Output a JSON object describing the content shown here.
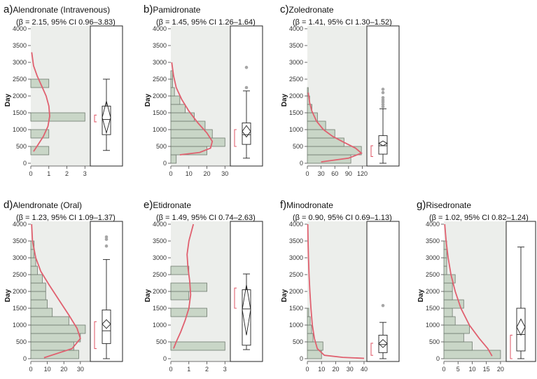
{
  "chart_data": [
    {
      "type": "bar",
      "letter": "a)",
      "drug": "Alendronate (Intravenous)",
      "stat": "(β = 2.15, 95% CI 0.96–3.83)",
      "ylabel": "Day",
      "ylim": [
        0,
        4000
      ],
      "yticks": [
        0,
        500,
        1000,
        1500,
        2000,
        2500,
        3000,
        3500,
        4000
      ],
      "xlim": [
        0,
        3.3
      ],
      "xticks": [
        0,
        1,
        2,
        3
      ],
      "bin_width": 250,
      "bars": [
        {
          "start": 250,
          "count": 1
        },
        {
          "start": 750,
          "count": 1
        },
        {
          "start": 1250,
          "count": 3
        },
        {
          "start": 2250,
          "count": 1
        }
      ],
      "curve": [
        [
          0.05,
          3300
        ],
        [
          0.15,
          2900
        ],
        [
          0.35,
          2600
        ],
        [
          0.6,
          2300
        ],
        [
          0.85,
          2000
        ],
        [
          1.0,
          1700
        ],
        [
          1.05,
          1400
        ],
        [
          0.95,
          1100
        ],
        [
          0.7,
          800
        ],
        [
          0.4,
          550
        ],
        [
          0.15,
          350
        ]
      ],
      "box": {
        "min": 380,
        "q1": 850,
        "median": 1300,
        "q3": 1700,
        "max": 2500,
        "mean": 1360,
        "ci_low": 900,
        "ci_high": 1850,
        "outliers": [],
        "bracket": [
          1230,
          1430
        ]
      }
    },
    {
      "type": "bar",
      "letter": "b)",
      "drug": "Pamidronate",
      "stat": "(β = 1.45, 95% CI 1.26–1.64)",
      "ylabel": "Day",
      "ylim": [
        0,
        4000
      ],
      "yticks": [
        0,
        500,
        1000,
        1500,
        2000,
        2500,
        3000,
        3500,
        4000
      ],
      "xlim": [
        0,
        33
      ],
      "xticks": [
        0,
        10,
        20,
        30
      ],
      "bin_width": 250,
      "bars": [
        {
          "start": 0,
          "count": 3
        },
        {
          "start": 250,
          "count": 20
        },
        {
          "start": 500,
          "count": 30
        },
        {
          "start": 750,
          "count": 23
        },
        {
          "start": 1000,
          "count": 19
        },
        {
          "start": 1250,
          "count": 13
        },
        {
          "start": 1500,
          "count": 8
        },
        {
          "start": 1750,
          "count": 5
        },
        {
          "start": 2000,
          "count": 2
        },
        {
          "start": 2250,
          "count": 1
        },
        {
          "start": 2500,
          "count": 1
        }
      ],
      "curve": [
        [
          0.5,
          3000
        ],
        [
          1.5,
          2600
        ],
        [
          3,
          2250
        ],
        [
          6,
          1900
        ],
        [
          10,
          1550
        ],
        [
          15,
          1200
        ],
        [
          20,
          900
        ],
        [
          23,
          650
        ],
        [
          22,
          450
        ],
        [
          16,
          320
        ],
        [
          5,
          250
        ]
      ],
      "box": {
        "min": 150,
        "q1": 560,
        "median": 850,
        "q3": 1200,
        "max": 2150,
        "mean": 950,
        "ci_low": 780,
        "ci_high": 1120,
        "outliers": [
          2250,
          2850
        ],
        "bracket": [
          500,
          1000
        ]
      }
    },
    {
      "type": "bar",
      "letter": "c)",
      "drug": "Zoledronate",
      "stat": "(β = 1.41, 95% CI 1.30–1.52)",
      "ylabel": "Day",
      "ylim": [
        0,
        4000
      ],
      "yticks": [
        0,
        500,
        1000,
        1500,
        2000,
        2500,
        3000,
        3500,
        4000
      ],
      "xlim": [
        0,
        130
      ],
      "xticks": [
        0,
        30,
        60,
        90,
        120
      ],
      "xticklabels": [
        "0",
        "30",
        "60",
        "90",
        "120"
      ],
      "bin_width": 250,
      "bars": [
        {
          "start": 0,
          "count": 95
        },
        {
          "start": 250,
          "count": 118
        },
        {
          "start": 500,
          "count": 80
        },
        {
          "start": 750,
          "count": 60
        },
        {
          "start": 1000,
          "count": 40
        },
        {
          "start": 1250,
          "count": 22
        },
        {
          "start": 1500,
          "count": 10
        },
        {
          "start": 1750,
          "count": 5
        },
        {
          "start": 2000,
          "count": 2
        }
      ],
      "curve": [
        [
          2,
          2100
        ],
        [
          5,
          1800
        ],
        [
          10,
          1550
        ],
        [
          20,
          1250
        ],
        [
          35,
          1000
        ],
        [
          55,
          800
        ],
        [
          80,
          620
        ],
        [
          105,
          450
        ],
        [
          118,
          300
        ],
        [
          90,
          150
        ],
        [
          30,
          40
        ]
      ],
      "box": {
        "min": 0,
        "q1": 270,
        "median": 520,
        "q3": 820,
        "max": 1620,
        "mean": 590,
        "ci_low": 520,
        "ci_high": 660,
        "outliers": [
          1680,
          1750,
          1820,
          1880,
          1950,
          2100,
          2200
        ],
        "bracket": [
          200,
          520
        ]
      }
    },
    {
      "type": "bar",
      "letter": "d)",
      "drug": "Alendronate (Oral)",
      "stat": "(β = 1.23, 95% CI 1.09–1.37)",
      "ylabel": "Day",
      "ylim": [
        0,
        4000
      ],
      "yticks": [
        0,
        500,
        1000,
        1500,
        2000,
        2500,
        3000,
        3500,
        4000
      ],
      "xlim": [
        0,
        36
      ],
      "xticks": [
        0,
        10,
        20,
        30
      ],
      "bin_width": 250,
      "bars": [
        {
          "start": 0,
          "count": 29
        },
        {
          "start": 250,
          "count": 26
        },
        {
          "start": 500,
          "count": 30
        },
        {
          "start": 750,
          "count": 33
        },
        {
          "start": 1000,
          "count": 23
        },
        {
          "start": 1250,
          "count": 13
        },
        {
          "start": 1500,
          "count": 10
        },
        {
          "start": 1750,
          "count": 9
        },
        {
          "start": 2000,
          "count": 9
        },
        {
          "start": 2250,
          "count": 7
        },
        {
          "start": 2500,
          "count": 4
        },
        {
          "start": 2750,
          "count": 3
        },
        {
          "start": 3000,
          "count": 2
        },
        {
          "start": 3250,
          "count": 2
        }
      ],
      "curve": [
        [
          0.5,
          4000
        ],
        [
          1,
          3500
        ],
        [
          3,
          3000
        ],
        [
          6,
          2600
        ],
        [
          11,
          2200
        ],
        [
          17,
          1750
        ],
        [
          23,
          1300
        ],
        [
          28,
          900
        ],
        [
          30,
          600
        ],
        [
          25,
          300
        ],
        [
          8,
          30
        ]
      ],
      "box": {
        "min": 0,
        "q1": 450,
        "median": 830,
        "q3": 1450,
        "max": 2950,
        "mean": 1030,
        "ci_low": 900,
        "ci_high": 1160,
        "outliers": [
          3350,
          3550,
          3620
        ],
        "bracket": [
          300,
          1100
        ]
      }
    },
    {
      "type": "bar",
      "letter": "e)",
      "drug": "Etidronate",
      "stat": "(β = 1.49, 95% CI 0.74–2.63)",
      "ylabel": "Day",
      "ylim": [
        0,
        4000
      ],
      "yticks": [
        0,
        500,
        1000,
        1500,
        2000,
        2500,
        3000,
        3500,
        4000
      ],
      "xlim": [
        0,
        3.3
      ],
      "xticks": [
        0,
        1,
        2,
        3
      ],
      "bin_width": 250,
      "bars": [
        {
          "start": 250,
          "count": 3
        },
        {
          "start": 1250,
          "count": 2
        },
        {
          "start": 1750,
          "count": 1
        },
        {
          "start": 2000,
          "count": 2
        },
        {
          "start": 2500,
          "count": 1
        }
      ],
      "curve": [
        [
          1.25,
          4000
        ],
        [
          1.0,
          3500
        ],
        [
          0.9,
          3100
        ],
        [
          0.95,
          2700
        ],
        [
          1.05,
          2300
        ],
        [
          1.1,
          1900
        ],
        [
          1.0,
          1500
        ],
        [
          0.8,
          1150
        ],
        [
          0.55,
          800
        ],
        [
          0.3,
          500
        ],
        [
          0.15,
          300
        ]
      ],
      "box": {
        "min": 270,
        "q1": 400,
        "median": 1480,
        "q3": 2050,
        "max": 2520,
        "mean": 1460,
        "ci_low": 700,
        "ci_high": 2200,
        "outliers": [],
        "bracket": [
          1500,
          2100
        ]
      }
    },
    {
      "type": "bar",
      "letter": "f)",
      "drug": "Minodronate",
      "stat": "(β = 0.90, 95% CI 0.69–1.13)",
      "ylabel": "Day",
      "ylim": [
        0,
        4000
      ],
      "yticks": [
        0,
        500,
        1000,
        1500,
        2000,
        2500,
        3000,
        3500,
        4000
      ],
      "xlim": [
        0,
        42
      ],
      "xticks": [
        0,
        10,
        20,
        30,
        40
      ],
      "bin_width": 250,
      "bars": [
        {
          "start": 0,
          "count": 10
        },
        {
          "start": 250,
          "count": 11
        },
        {
          "start": 500,
          "count": 4
        },
        {
          "start": 750,
          "count": 3
        },
        {
          "start": 1000,
          "count": 2
        },
        {
          "start": 1250,
          "count": 1
        }
      ],
      "curve": [
        [
          0.3,
          4000
        ],
        [
          0.5,
          3500
        ],
        [
          0.8,
          3000
        ],
        [
          1.2,
          2500
        ],
        [
          1.8,
          2000
        ],
        [
          2.5,
          1500
        ],
        [
          3.5,
          1000
        ],
        [
          5,
          600
        ],
        [
          7,
          300
        ],
        [
          12,
          100
        ],
        [
          25,
          40
        ],
        [
          40,
          10
        ]
      ],
      "box": {
        "min": 0,
        "q1": 180,
        "median": 420,
        "q3": 700,
        "max": 1080,
        "mean": 450,
        "ci_low": 330,
        "ci_high": 570,
        "outliers": [
          1580
        ],
        "bracket": [
          100,
          460
        ]
      }
    },
    {
      "type": "bar",
      "letter": "g)",
      "drug": "Risedronate",
      "stat": "(β = 1.02, 95% CI 0.82–1.24)",
      "ylabel": "Day",
      "ylim": [
        0,
        4000
      ],
      "yticks": [
        0,
        500,
        1000,
        1500,
        2000,
        2500,
        3000,
        3500,
        4000
      ],
      "xlim": [
        0,
        22
      ],
      "xticks": [
        0,
        5,
        10,
        15,
        20
      ],
      "bin_width": 250,
      "bars": [
        {
          "start": 0,
          "count": 20
        },
        {
          "start": 250,
          "count": 10
        },
        {
          "start": 500,
          "count": 7
        },
        {
          "start": 750,
          "count": 9
        },
        {
          "start": 1000,
          "count": 4
        },
        {
          "start": 1250,
          "count": 3
        },
        {
          "start": 1500,
          "count": 7
        },
        {
          "start": 1750,
          "count": 3
        },
        {
          "start": 2000,
          "count": 3
        },
        {
          "start": 2250,
          "count": 4
        },
        {
          "start": 2500,
          "count": 1
        },
        {
          "start": 2750,
          "count": 1
        },
        {
          "start": 3000,
          "count": 1
        },
        {
          "start": 3250,
          "count": 1
        }
      ],
      "curve": [
        [
          0.3,
          4000
        ],
        [
          0.8,
          3500
        ],
        [
          1.5,
          3000
        ],
        [
          2.5,
          2500
        ],
        [
          4,
          2000
        ],
        [
          6,
          1500
        ],
        [
          9,
          1000
        ],
        [
          12.5,
          600
        ],
        [
          15.5,
          300
        ],
        [
          17,
          80
        ]
      ],
      "box": {
        "min": 0,
        "q1": 230,
        "median": 720,
        "q3": 1500,
        "max": 3320,
        "mean": 940,
        "ci_low": 700,
        "ci_high": 1180,
        "outliers": [],
        "bracket": [
          0,
          700
        ]
      }
    }
  ]
}
